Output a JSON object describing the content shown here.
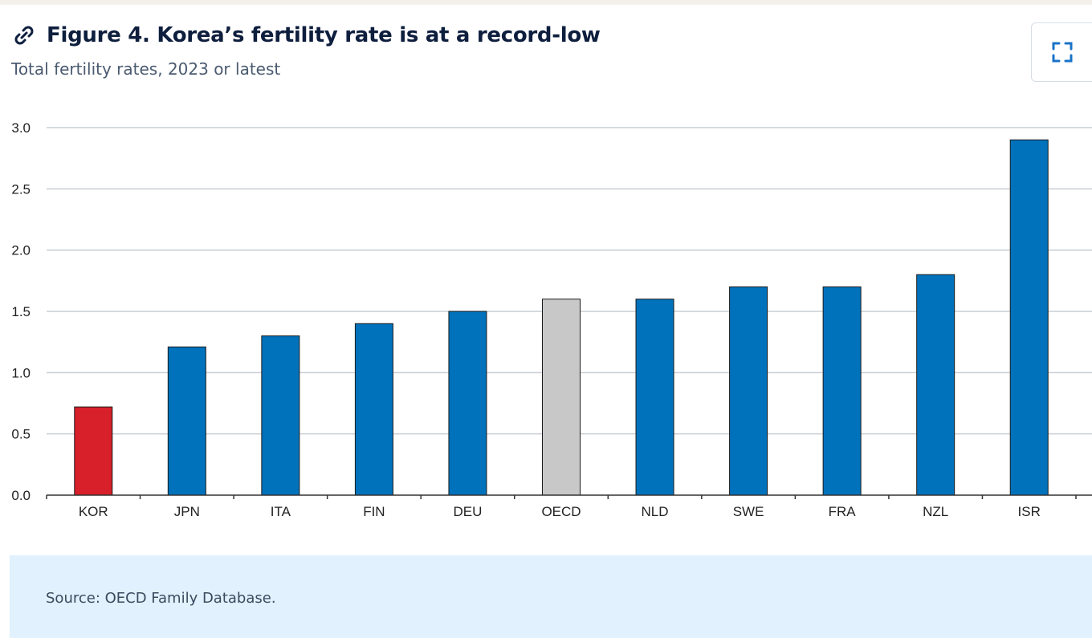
{
  "figure": {
    "title": "Figure 4. Korea’s fertility rate is at a record-low",
    "subtitle": "Total fertility rates, 2023 or latest",
    "source": "Source: OECD Family Database.",
    "link_icon": "link-icon",
    "expand_icon": "fullscreen-expand-icon"
  },
  "chart_data": {
    "type": "bar",
    "title": "Figure 4. Korea’s fertility rate is at a record-low",
    "subtitle": "Total fertility rates, 2023 or latest",
    "xlabel": "",
    "ylabel": "",
    "categories": [
      "KOR",
      "JPN",
      "ITA",
      "FIN",
      "DEU",
      "OECD",
      "NLD",
      "SWE",
      "FRA",
      "NZL",
      "ISR"
    ],
    "values": [
      0.72,
      1.21,
      1.3,
      1.4,
      1.5,
      1.6,
      1.6,
      1.7,
      1.7,
      1.8,
      2.9
    ],
    "ylim": [
      0,
      3.0
    ],
    "yticks": [
      "0.0",
      "0.5",
      "1.0",
      "1.5",
      "2.0",
      "2.5",
      "3.0"
    ],
    "grid": "horizontal",
    "legend": "none",
    "colors": {
      "default": "#0072bc",
      "KOR": "#d7202a",
      "OECD": "#c8c8c8"
    }
  }
}
